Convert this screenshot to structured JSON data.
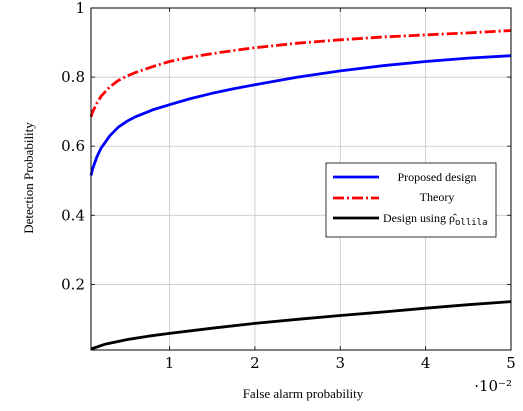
{
  "chart_data": {
    "type": "line",
    "xlabel": "False alarm probability",
    "ylabel": "Detection Probability",
    "x_scale_factor": "·10⁻²",
    "xlim": [
      0.08,
      5
    ],
    "ylim": [
      0.01,
      1
    ],
    "xticks": [
      1,
      2,
      3,
      4,
      5
    ],
    "yticks": [
      0.2,
      0.4,
      0.6,
      0.8,
      1
    ],
    "ytick_labels": [
      "0.2",
      "0.4",
      "0.6",
      "0.8",
      "1"
    ],
    "grid": true,
    "legend_position": "center-right",
    "series": [
      {
        "name": "Proposed design",
        "color": "#0000ff",
        "style": "solid",
        "x": [
          0.08,
          0.1,
          0.15,
          0.2,
          0.3,
          0.4,
          0.5,
          0.6,
          0.8,
          1.0,
          1.25,
          1.5,
          1.75,
          2.0,
          2.5,
          3.0,
          3.5,
          4.0,
          4.5,
          5.0
        ],
        "y": [
          0.515,
          0.535,
          0.57,
          0.595,
          0.63,
          0.655,
          0.672,
          0.685,
          0.705,
          0.72,
          0.738,
          0.753,
          0.766,
          0.778,
          0.8,
          0.818,
          0.833,
          0.845,
          0.855,
          0.862
        ]
      },
      {
        "name": "Theory",
        "color": "#ff0000",
        "style": "dashdot",
        "x": [
          0.08,
          0.1,
          0.15,
          0.2,
          0.3,
          0.4,
          0.5,
          0.6,
          0.8,
          1.0,
          1.25,
          1.5,
          1.75,
          2.0,
          2.5,
          3.0,
          3.5,
          4.0,
          4.5,
          5.0
        ],
        "y": [
          0.685,
          0.7,
          0.725,
          0.745,
          0.772,
          0.79,
          0.803,
          0.813,
          0.83,
          0.845,
          0.858,
          0.868,
          0.877,
          0.885,
          0.898,
          0.908,
          0.916,
          0.922,
          0.928,
          0.935
        ]
      },
      {
        "name": "Design using ρ̂",
        "name_subscript": "ollila",
        "color": "#000000",
        "style": "solid",
        "x": [
          0.08,
          0.25,
          0.5,
          0.75,
          1.0,
          1.5,
          2.0,
          2.5,
          3.0,
          3.5,
          4.0,
          4.5,
          5.0
        ],
        "y": [
          0.013,
          0.027,
          0.04,
          0.05,
          0.058,
          0.073,
          0.087,
          0.099,
          0.11,
          0.12,
          0.131,
          0.141,
          0.15
        ]
      }
    ]
  }
}
